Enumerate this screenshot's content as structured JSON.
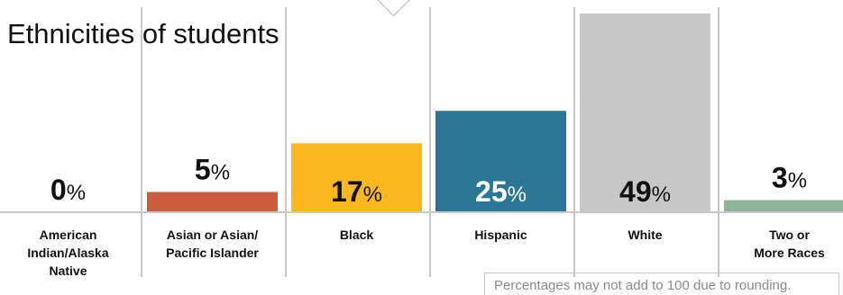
{
  "title": "Ethnicities of students",
  "note": "Percentages may not add to 100 due to rounding.",
  "chart_data": {
    "type": "bar",
    "categories": [
      [
        "American",
        "Indian/Alaska",
        "Native"
      ],
      [
        "Asian or Asian/",
        "Pacific Islander"
      ],
      [
        "Black"
      ],
      [
        "Hispanic"
      ],
      [
        "White"
      ],
      [
        "Two or",
        "More Races"
      ]
    ],
    "values": [
      0,
      5,
      17,
      25,
      49,
      3
    ],
    "value_labels": [
      "0%",
      "5%",
      "17%",
      "25%",
      "49%",
      "3%"
    ],
    "colors": [
      "#c8c8c8",
      "#cd5d3f",
      "#fbb71e",
      "#2b7694",
      "#c8c8c8",
      "#8fb39a"
    ],
    "ylim": [
      0,
      49
    ],
    "grid": "vertical separators"
  }
}
